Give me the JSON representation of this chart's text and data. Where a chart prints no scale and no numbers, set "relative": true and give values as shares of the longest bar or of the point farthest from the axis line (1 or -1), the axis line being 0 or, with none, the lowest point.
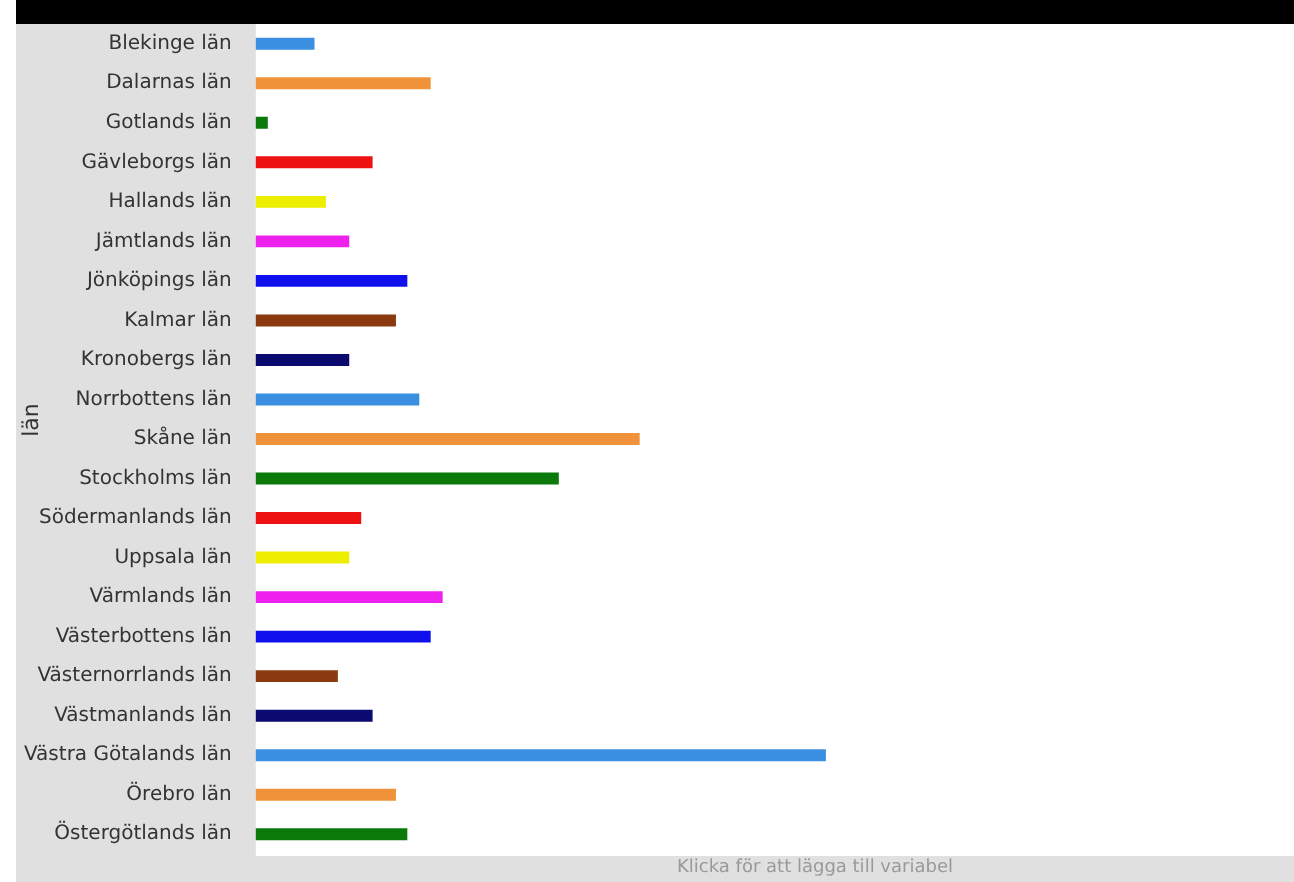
{
  "chart_data": {
    "type": "bar",
    "orientation": "horizontal",
    "relative": true,
    "ylabel": "län",
    "categories": [
      "Blekinge län",
      "Dalarnas län",
      "Gotlands län",
      "Gävleborgs län",
      "Hallands län",
      "Jämtlands län",
      "Jönköpings län",
      "Kalmar län",
      "Kronobergs län",
      "Norrbottens län",
      "Skåne län",
      "Stockholms län",
      "Södermanlands län",
      "Uppsala län",
      "Värmlands län",
      "Västerbottens län",
      "Västernorrlands län",
      "Västmanlands län",
      "Västra Götalands län",
      "Örebro län",
      "Östergötlands län"
    ],
    "values": [
      0.102,
      0.306,
      0.02,
      0.204,
      0.122,
      0.163,
      0.265,
      0.245,
      0.163,
      0.286,
      0.673,
      0.531,
      0.184,
      0.163,
      0.327,
      0.306,
      0.143,
      0.204,
      1,
      0.245,
      0.265
    ],
    "colors": [
      "#3a8fe0",
      "#f0923a",
      "#0b7a0b",
      "#ee1111",
      "#eeee00",
      "#ee22ee",
      "#1010ee",
      "#8b3a0f",
      "#0a0a70",
      "#3a8fe0",
      "#f0923a",
      "#0b7a0b",
      "#ee1111",
      "#eeee00",
      "#ee22ee",
      "#1010ee",
      "#8b3a0f",
      "#0a0a70",
      "#3a8fe0",
      "#f0923a",
      "#0b7a0b"
    ],
    "annotations": [
      "Klicka för att lägga till variabel"
    ],
    "legend": false
  }
}
